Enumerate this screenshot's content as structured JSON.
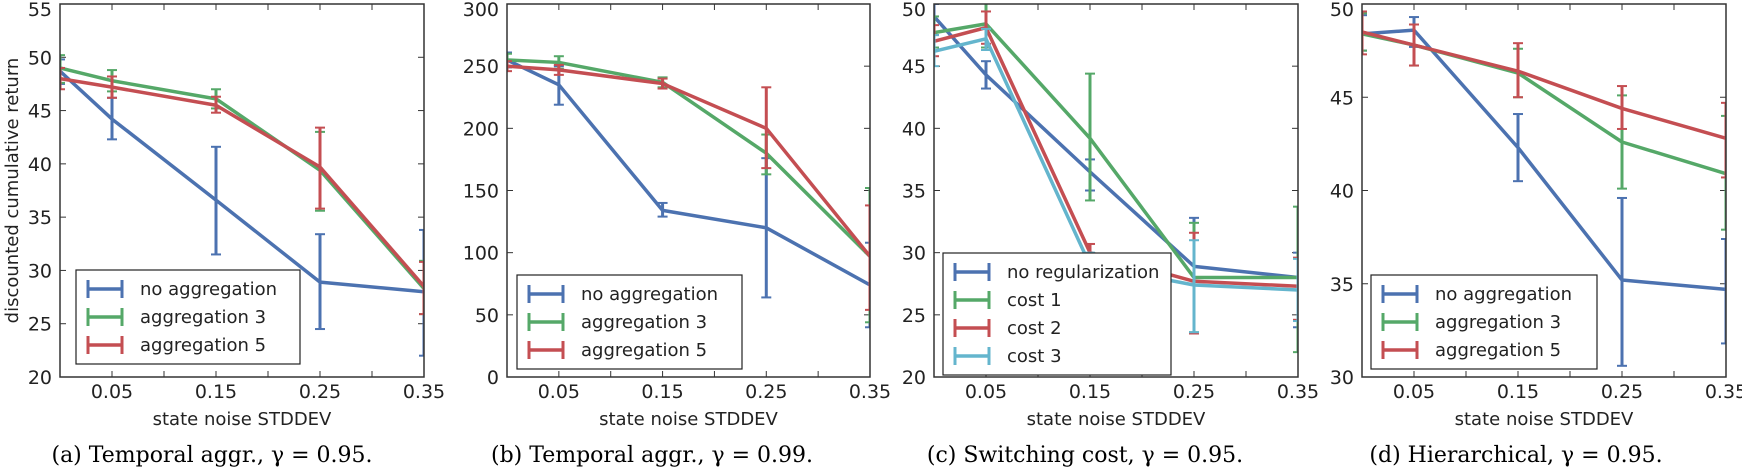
{
  "chart_data": [
    {
      "type": "line",
      "caption": "(a) Temporal aggr., γ = 0.95.",
      "xlabel": "state noise STDDEV",
      "ylabel": "discounted cumulative return",
      "x": [
        0,
        0.05,
        0.15,
        0.25,
        0.35
      ],
      "xlim": [
        0,
        0.35
      ],
      "xticks": [
        "0.05",
        "0.15",
        "0.25",
        "0.35"
      ],
      "ylim": [
        20,
        55
      ],
      "yticks": [
        "20",
        "25",
        "30",
        "35",
        "40",
        "45",
        "50",
        "55"
      ],
      "legend_placement": "lower-left",
      "series": [
        {
          "name": "no aggregation",
          "color": "#4c72b0",
          "values": [
            48.7,
            44.2,
            36.6,
            28.9,
            28.0
          ],
          "err_low": [
            47.5,
            42.3,
            31.5,
            24.5,
            22.0
          ],
          "err_high": [
            49.8,
            46.2,
            41.6,
            33.4,
            33.8
          ]
        },
        {
          "name": "aggregation 3",
          "color": "#55a868",
          "values": [
            49.0,
            47.8,
            46.1,
            39.4,
            28.3
          ],
          "err_low": [
            47.6,
            46.8,
            45.2,
            35.6,
            25.9
          ],
          "err_high": [
            50.2,
            48.8,
            47.0,
            43.0,
            30.9
          ]
        },
        {
          "name": "aggregation 5",
          "color": "#c44e52",
          "values": [
            48.0,
            47.2,
            45.5,
            39.7,
            28.5
          ],
          "err_low": [
            47.0,
            46.2,
            44.8,
            35.8,
            25.9
          ],
          "err_high": [
            49.0,
            48.2,
            46.3,
            43.4,
            30.8
          ]
        }
      ]
    },
    {
      "type": "line",
      "caption": "(b) Temporal aggr., γ = 0.99.",
      "xlabel": "state noise STDDEV",
      "x": [
        0,
        0.05,
        0.15,
        0.25,
        0.35
      ],
      "xlim": [
        0,
        0.35
      ],
      "xticks": [
        "0.05",
        "0.15",
        "0.25",
        "0.35"
      ],
      "ylim": [
        0,
        300
      ],
      "yticks": [
        "0",
        "50",
        "100",
        "150",
        "200",
        "250",
        "300"
      ],
      "legend_placement": "lower-left",
      "series": [
        {
          "name": "no aggregation",
          "color": "#4c72b0",
          "values": [
            255,
            235,
            134,
            120,
            74
          ],
          "err_low": [
            249,
            219,
            129,
            64,
            40
          ],
          "err_high": [
            261,
            250,
            140,
            176,
            108
          ]
        },
        {
          "name": "aggregation 3",
          "color": "#55a868",
          "values": [
            255,
            253,
            237,
            180,
            97
          ],
          "err_low": [
            250,
            248,
            233,
            163,
            44
          ],
          "err_high": [
            260,
            258,
            241,
            195,
            152
          ]
        },
        {
          "name": "aggregation 5",
          "color": "#c44e52",
          "values": [
            250,
            247,
            236,
            200,
            97
          ],
          "err_low": [
            246,
            243,
            232,
            168,
            54
          ],
          "err_high": [
            254,
            251,
            240,
            233,
            138
          ]
        }
      ]
    },
    {
      "type": "line",
      "caption": "(c) Switching cost, γ = 0.95.",
      "xlabel": "state noise STDDEV",
      "x": [
        0,
        0.05,
        0.15,
        0.25,
        0.35
      ],
      "xlim": [
        0,
        0.35
      ],
      "xticks": [
        "0.05",
        "0.15",
        "0.25",
        "0.35"
      ],
      "ylim": [
        20,
        50
      ],
      "yticks": [
        "20",
        "25",
        "30",
        "35",
        "40",
        "45",
        "50"
      ],
      "legend_placement": "lower-left",
      "series": [
        {
          "name": "no regularization",
          "color": "#4c72b0",
          "values": [
            49.0,
            44.3,
            36.5,
            28.9,
            28.0
          ],
          "err_low": [
            47.5,
            43.2,
            35.0,
            23.5,
            24.0
          ],
          "err_high": [
            50.0,
            45.4,
            37.5,
            32.8,
            30.0
          ]
        },
        {
          "name": "cost 1",
          "color": "#55a868",
          "values": [
            47.7,
            48.4,
            39.2,
            28.0,
            28.0
          ],
          "err_low": [
            46.5,
            46.5,
            34.2,
            23.6,
            22.0
          ],
          "err_high": [
            49.0,
            50.5,
            44.4,
            32.4,
            33.7
          ]
        },
        {
          "name": "cost 2",
          "color": "#c44e52",
          "values": [
            47.0,
            48.1,
            30.0,
            27.7,
            27.3
          ],
          "err_low": [
            45.8,
            46.8,
            29.0,
            23.5,
            24.6
          ],
          "err_high": [
            48.3,
            49.4,
            30.7,
            31.6,
            29.6
          ]
        },
        {
          "name": "cost 3",
          "color": "#64b5cd",
          "values": [
            46.2,
            47.2,
            29.0,
            27.4,
            27.0
          ],
          "err_low": [
            45.0,
            46.3,
            28.0,
            23.6,
            24.5
          ],
          "err_high": [
            47.5,
            48.0,
            30.0,
            31.0,
            29.5
          ]
        }
      ]
    },
    {
      "type": "line",
      "caption": "(d) Hierarchical, γ = 0.95.",
      "xlabel": "state noise STDDEV",
      "x": [
        0,
        0.05,
        0.15,
        0.25,
        0.35
      ],
      "xlim": [
        0,
        0.35
      ],
      "xticks": [
        "0.05",
        "0.15",
        "0.25",
        "0.35"
      ],
      "ylim": [
        30,
        50
      ],
      "yticks": [
        "30",
        "35",
        "40",
        "45",
        "50"
      ],
      "legend_placement": "lower-left",
      "series": [
        {
          "name": "no aggregation",
          "color": "#4c72b0",
          "values": [
            48.4,
            48.6,
            42.3,
            35.2,
            34.7
          ],
          "err_low": [
            47.5,
            47.7,
            40.5,
            30.6,
            31.8
          ],
          "err_high": [
            49.4,
            49.3,
            44.1,
            39.6,
            37.4
          ]
        },
        {
          "name": "aggregation 3",
          "color": "#55a868",
          "values": [
            48.4,
            47.8,
            46.3,
            42.6,
            40.9
          ],
          "err_low": [
            47.5,
            46.7,
            45.0,
            40.1,
            37.9
          ],
          "err_high": [
            49.5,
            48.9,
            47.6,
            45.1,
            44.0
          ]
        },
        {
          "name": "aggregation 5",
          "color": "#c44e52",
          "values": [
            48.5,
            47.8,
            46.4,
            44.4,
            42.8
          ],
          "err_low": [
            47.3,
            46.7,
            45.0,
            43.3,
            40.7
          ],
          "err_high": [
            49.6,
            48.9,
            47.9,
            45.6,
            44.7
          ]
        }
      ]
    }
  ]
}
